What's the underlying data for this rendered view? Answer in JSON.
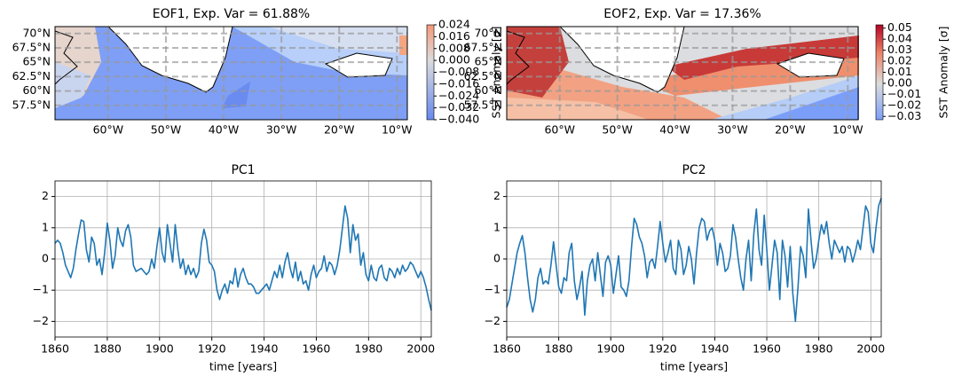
{
  "chart_data": [
    {
      "type": "map",
      "title": "EOF1, Exp. Var = 61.88%",
      "xlim": [
        -69.2,
        -8.2
      ],
      "ylim": [
        55,
        71.2
      ],
      "xticks": [
        {
          "value": -60,
          "label": "60°W"
        },
        {
          "value": -50,
          "label": "50°W"
        },
        {
          "value": -40,
          "label": "40°W"
        },
        {
          "value": -30,
          "label": "30°W"
        },
        {
          "value": -20,
          "label": "20°W"
        },
        {
          "value": -10,
          "label": "10°W"
        }
      ],
      "yticks": [
        {
          "value": 57.5,
          "label": "57.5°N"
        },
        {
          "value": 60,
          "label": "60°N"
        },
        {
          "value": 62.5,
          "label": "62.5°N"
        },
        {
          "value": 65,
          "label": "65°N"
        },
        {
          "value": 67.5,
          "label": "67.5°N"
        },
        {
          "value": 70,
          "label": "70°N"
        }
      ],
      "grid": true,
      "colorbar": {
        "label": "SST Anomaly [σ]",
        "lim": [
          -0.04,
          0.024
        ],
        "ticks": [
          0.024,
          0.016,
          0.008,
          {
            "value": 0,
            "label": "0.000"
          },
          {
            "value": -0.008,
            "label": "−0.008"
          },
          {
            "value": -0.016,
            "label": "−0.016"
          },
          {
            "value": -0.024,
            "label": "−0.024"
          },
          {
            "value": -0.032,
            "label": "−0.032"
          },
          {
            "value": -0.04,
            "label": "−0.040"
          }
        ]
      }
    },
    {
      "type": "map",
      "title": "EOF2, Exp. Var = 17.36%",
      "xlim": [
        -69.2,
        -8.2
      ],
      "ylim": [
        55,
        71.2
      ],
      "xticks": [
        {
          "value": -60,
          "label": "60°W"
        },
        {
          "value": -50,
          "label": "50°W"
        },
        {
          "value": -40,
          "label": "40°W"
        },
        {
          "value": -30,
          "label": "30°W"
        },
        {
          "value": -20,
          "label": "20°W"
        },
        {
          "value": -10,
          "label": "10°W"
        }
      ],
      "yticks": [
        {
          "value": 57.5,
          "label": "57.5°N"
        },
        {
          "value": 60,
          "label": "60°N"
        },
        {
          "value": 62.5,
          "label": "62.5°N"
        },
        {
          "value": 65,
          "label": "65°N"
        },
        {
          "value": 67.5,
          "label": "67.5°N"
        },
        {
          "value": 70,
          "label": "70°N"
        }
      ],
      "grid": true,
      "colorbar": {
        "label": "SST Anomaly [σ]",
        "lim": [
          -0.033,
          0.053
        ],
        "ticks": [
          0.05,
          0.04,
          0.03,
          0.02,
          0.01,
          {
            "value": 0,
            "label": "0.00"
          },
          {
            "value": -0.01,
            "label": "−0.01"
          },
          {
            "value": -0.02,
            "label": "−0.02"
          },
          {
            "value": -0.03,
            "label": "−0.03"
          }
        ]
      }
    },
    {
      "type": "line",
      "title": "PC1",
      "x_label": "time [years]",
      "color": "#1f77b4",
      "grid": true,
      "xlim": [
        1860,
        2004
      ],
      "ylim": [
        -2.5,
        2.5
      ],
      "xticks": [
        1860,
        1880,
        1900,
        1920,
        1940,
        1960,
        1980,
        2000
      ],
      "yticks": [
        {
          "value": -2,
          "label": "−2"
        },
        {
          "value": -1,
          "label": "−1"
        },
        0,
        1,
        2
      ],
      "x": [
        1860,
        1861,
        1862,
        1863,
        1864,
        1865,
        1866,
        1867,
        1868,
        1869,
        1870,
        1871,
        1872,
        1873,
        1874,
        1875,
        1876,
        1877,
        1878,
        1879,
        1880,
        1881,
        1882,
        1883,
        1884,
        1885,
        1886,
        1887,
        1888,
        1889,
        1890,
        1891,
        1892,
        1893,
        1894,
        1895,
        1896,
        1897,
        1898,
        1899,
        1900,
        1901,
        1902,
        1903,
        1904,
        1905,
        1906,
        1907,
        1908,
        1909,
        1910,
        1911,
        1912,
        1913,
        1914,
        1915,
        1916,
        1917,
        1918,
        1919,
        1920,
        1921,
        1922,
        1923,
        1924,
        1925,
        1926,
        1927,
        1928,
        1929,
        1930,
        1931,
        1932,
        1933,
        1934,
        1935,
        1936,
        1937,
        1938,
        1939,
        1940,
        1941,
        1942,
        1943,
        1944,
        1945,
        1946,
        1947,
        1948,
        1949,
        1950,
        1951,
        1952,
        1953,
        1954,
        1955,
        1956,
        1957,
        1958,
        1959,
        1960,
        1961,
        1962,
        1963,
        1964,
        1965,
        1966,
        1967,
        1968,
        1969,
        1970,
        1971,
        1972,
        1973,
        1974,
        1975,
        1976,
        1977,
        1978,
        1979,
        1980,
        1981,
        1982,
        1983,
        1984,
        1985,
        1986,
        1987,
        1988,
        1989,
        1990,
        1991,
        1992,
        1993,
        1994,
        1995,
        1996,
        1997,
        1998,
        1999,
        2000,
        2001,
        2002,
        2003,
        2004
      ],
      "values": [
        0.5,
        0.6,
        0.5,
        0.2,
        -0.2,
        -0.4,
        -0.6,
        -0.3,
        0.3,
        0.8,
        1.25,
        1.2,
        0.3,
        -0.1,
        0.7,
        0.5,
        -0.2,
        0.0,
        -0.5,
        0.2,
        1.15,
        0.6,
        -0.3,
        0.1,
        1.0,
        0.6,
        0.4,
        0.9,
        1.1,
        0.7,
        -0.2,
        -0.4,
        -0.35,
        -0.3,
        -0.4,
        -0.5,
        -0.4,
        0.0,
        -0.3,
        0.4,
        1.0,
        0.2,
        -0.1,
        1.1,
        0.5,
        -0.1,
        1.1,
        0.3,
        -0.3,
        0.0,
        -0.5,
        -0.2,
        -0.5,
        -0.3,
        -0.6,
        -0.4,
        0.5,
        0.95,
        0.6,
        -0.1,
        -0.2,
        -0.4,
        -1.0,
        -1.3,
        -1.0,
        -0.8,
        -1.1,
        -0.7,
        -0.8,
        -0.3,
        -0.9,
        -0.5,
        -0.3,
        -0.6,
        -0.8,
        -0.8,
        -0.9,
        -1.1,
        -1.1,
        -1.0,
        -0.9,
        -0.8,
        -1.0,
        -0.7,
        -0.4,
        -0.6,
        -0.2,
        -0.6,
        -0.1,
        0.2,
        -0.3,
        -0.6,
        -0.1,
        -0.7,
        -0.4,
        -0.8,
        -0.7,
        -1.0,
        -0.5,
        -0.2,
        -0.6,
        -0.4,
        -0.3,
        0.1,
        -0.4,
        -0.1,
        -0.2,
        -0.5,
        -0.2,
        0.3,
        1.0,
        1.7,
        1.3,
        0.2,
        1.1,
        0.6,
        0.8,
        -0.2,
        0.2,
        -0.5,
        -0.7,
        -0.2,
        -0.6,
        -0.7,
        -0.3,
        -0.2,
        -0.6,
        -0.7,
        -0.3,
        -0.4,
        -0.6,
        -0.3,
        -0.5,
        -0.2,
        -0.4,
        -0.3,
        -0.1,
        -0.2,
        -0.4,
        -0.6,
        -0.4,
        -0.6,
        -0.9,
        -1.3,
        -1.65
      ]
    },
    {
      "type": "line",
      "title": "PC2",
      "x_label": "time [years]",
      "color": "#1f77b4",
      "grid": true,
      "xlim": [
        1860,
        2004
      ],
      "ylim": [
        -2.5,
        2.5
      ],
      "xticks": [
        1860,
        1880,
        1900,
        1920,
        1940,
        1960,
        1980,
        2000
      ],
      "yticks": [
        {
          "value": -2,
          "label": "−2"
        },
        {
          "value": -1,
          "label": "−1"
        },
        0,
        1,
        2
      ],
      "x": [
        1860,
        1861,
        1862,
        1863,
        1864,
        1865,
        1866,
        1867,
        1868,
        1869,
        1870,
        1871,
        1872,
        1873,
        1874,
        1875,
        1876,
        1877,
        1878,
        1879,
        1880,
        1881,
        1882,
        1883,
        1884,
        1885,
        1886,
        1887,
        1888,
        1889,
        1890,
        1891,
        1892,
        1893,
        1894,
        1895,
        1896,
        1897,
        1898,
        1899,
        1900,
        1901,
        1902,
        1903,
        1904,
        1905,
        1906,
        1907,
        1908,
        1909,
        1910,
        1911,
        1912,
        1913,
        1914,
        1915,
        1916,
        1917,
        1918,
        1919,
        1920,
        1921,
        1922,
        1923,
        1924,
        1925,
        1926,
        1927,
        1928,
        1929,
        1930,
        1931,
        1932,
        1933,
        1934,
        1935,
        1936,
        1937,
        1938,
        1939,
        1940,
        1941,
        1942,
        1943,
        1944,
        1945,
        1946,
        1947,
        1948,
        1949,
        1950,
        1951,
        1952,
        1953,
        1954,
        1955,
        1956,
        1957,
        1958,
        1959,
        1960,
        1961,
        1962,
        1963,
        1964,
        1965,
        1966,
        1967,
        1968,
        1969,
        1970,
        1971,
        1972,
        1973,
        1974,
        1975,
        1976,
        1977,
        1978,
        1979,
        1980,
        1981,
        1982,
        1983,
        1984,
        1985,
        1986,
        1987,
        1988,
        1989,
        1990,
        1991,
        1992,
        1993,
        1994,
        1995,
        1996,
        1997,
        1998,
        1999,
        2000,
        2001,
        2002,
        2003,
        2004
      ],
      "values": [
        -1.55,
        -1.3,
        -0.8,
        -0.3,
        0.2,
        0.5,
        0.75,
        0.2,
        -0.6,
        -1.3,
        -1.7,
        -1.3,
        -0.6,
        -0.3,
        -0.8,
        -0.7,
        -0.8,
        -0.2,
        0.55,
        -0.2,
        -0.9,
        -1.1,
        -0.6,
        -0.7,
        0.2,
        0.5,
        -0.7,
        -1.3,
        -0.9,
        -0.4,
        -1.8,
        -0.7,
        -0.2,
        0.0,
        -0.7,
        0.2,
        -0.5,
        -1.2,
        -0.1,
        0.1,
        -0.2,
        -1.1,
        -0.5,
        0.1,
        -0.9,
        -1.0,
        -1.2,
        -0.7,
        0.4,
        1.3,
        1.1,
        0.7,
        0.5,
        0.1,
        -0.6,
        -0.1,
        0.0,
        -0.3,
        0.4,
        1.2,
        0.5,
        -0.1,
        0.2,
        0.6,
        -0.3,
        -0.5,
        0.6,
        0.3,
        -0.5,
        -0.2,
        0.4,
        0.0,
        -0.8,
        0.2,
        1.0,
        1.3,
        1.2,
        0.6,
        0.9,
        1.0,
        0.6,
        -0.2,
        0.5,
        0.2,
        -0.4,
        -0.3,
        0.1,
        1.1,
        0.7,
        0.0,
        -0.6,
        -1.0,
        0.0,
        0.6,
        -0.7,
        0.8,
        1.6,
        0.3,
        -0.2,
        1.4,
        0.3,
        -1.0,
        -0.2,
        0.6,
        0.2,
        -1.3,
        0.6,
        0.1,
        -0.9,
        0.4,
        -1.1,
        -2.0,
        -0.9,
        0.4,
        0.1,
        -0.6,
        1.6,
        0.6,
        -0.3,
        0.0,
        0.6,
        1.1,
        0.8,
        1.2,
        0.5,
        0.0,
        0.6,
        0.4,
        0.2,
        0.4,
        -0.1,
        0.4,
        0.3,
        -0.1,
        0.2,
        0.6,
        0.3,
        1.0,
        1.7,
        1.5,
        0.5,
        0.2,
        1.0,
        1.7,
        1.95
      ]
    }
  ]
}
